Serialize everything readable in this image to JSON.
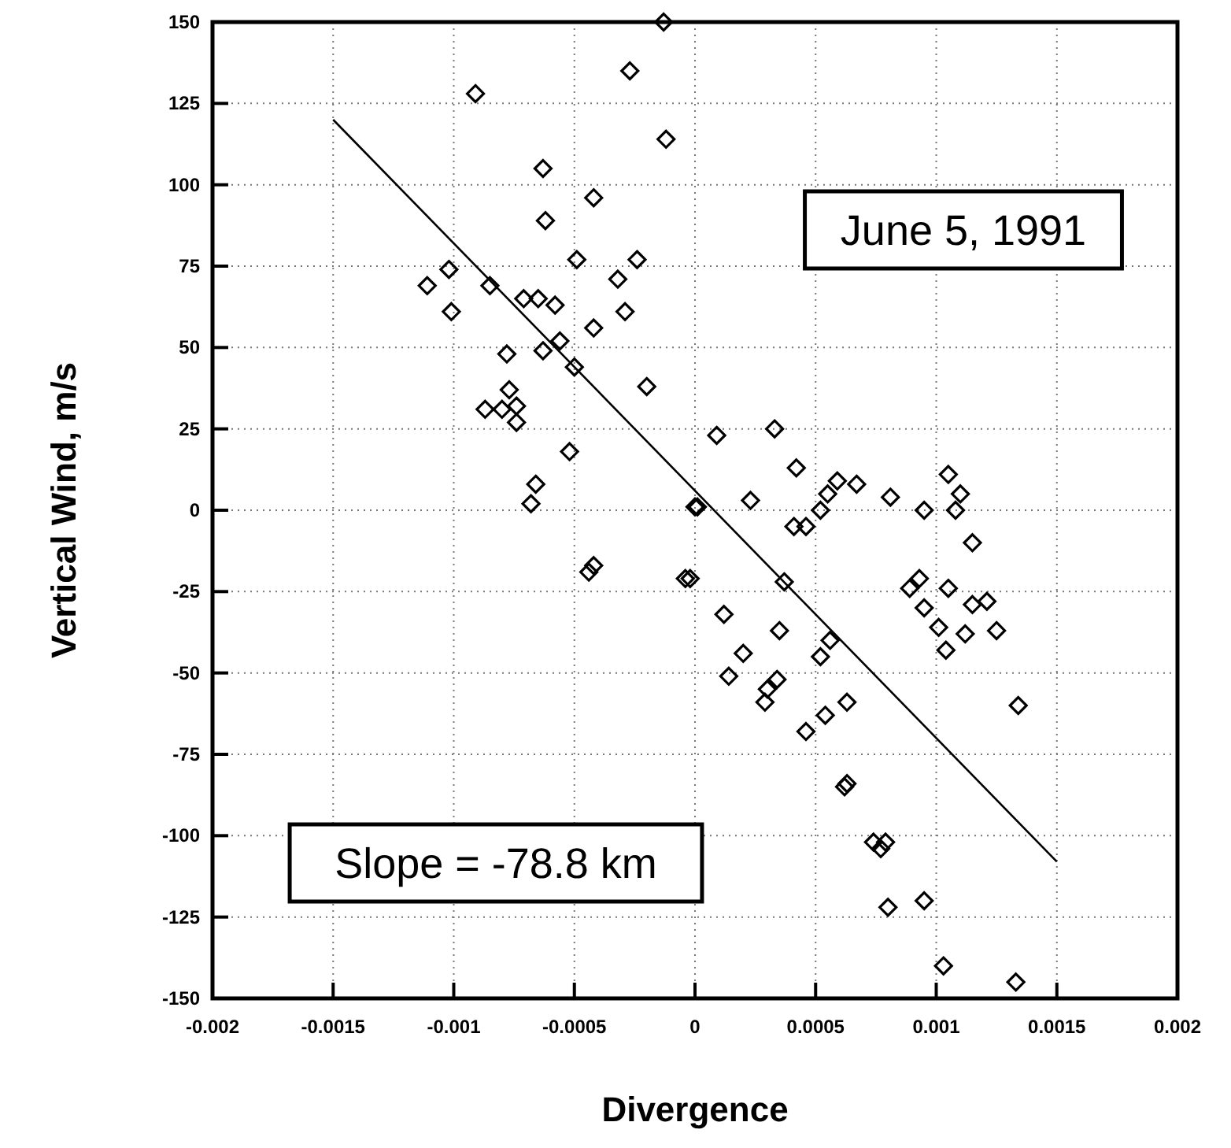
{
  "chart_data": {
    "type": "scatter",
    "xlabel": "Divergence",
    "ylabel": "Vertical Wind, m/s",
    "annotations": [
      "June 5, 1991",
      "Slope = -78.8 km"
    ],
    "xlim": [
      -0.002,
      0.002
    ],
    "xticks": [
      {
        "value": -0.002,
        "label": "-0.002"
      },
      {
        "value": -0.0015,
        "label": "-0.0015"
      },
      {
        "value": -0.001,
        "label": "-0.001"
      },
      {
        "value": -0.0005,
        "label": "-0.0005"
      },
      0,
      {
        "value": 0.0005,
        "label": "0.0005"
      },
      {
        "value": 0.001,
        "label": "0.001"
      },
      {
        "value": 0.0015,
        "label": "0.0015"
      },
      {
        "value": 0.002,
        "label": "0.002"
      }
    ],
    "ylim": [
      -150,
      150
    ],
    "yticks": [
      -150,
      -125,
      -100,
      -75,
      -50,
      -25,
      0,
      25,
      50,
      75,
      100,
      125,
      150
    ],
    "grid": true,
    "marker": "diamond",
    "series": [
      {
        "color": "#000000",
        "x": [
          -0.00013,
          -0.00027,
          -0.00091,
          -0.00012,
          -0.00063,
          -0.00042,
          -0.00062,
          -0.00049,
          -0.00024,
          -0.00102,
          -0.00111,
          -0.00032,
          -0.00085,
          -0.00071,
          -0.00065,
          -0.00058,
          -0.00101,
          -0.00029,
          -0.00056,
          -0.00042,
          -0.00078,
          -0.00063,
          -0.0005,
          -0.0002,
          -0.00077,
          -0.00087,
          -0.0008,
          -0.00074,
          -0.00074,
          -0.00052,
          -0.00066,
          -0.00068,
          0,
          1e-05,
          -0.00042,
          -0.00044,
          -2e-05,
          -4e-05,
          9e-05,
          0.00033,
          0.00042,
          0.00059,
          0.00055,
          0.00067,
          0.00081,
          0.00105,
          0.0011,
          0.00052,
          0.00095,
          0.00108,
          0.00023,
          0.00115,
          0.00041,
          0.00046,
          0.00037,
          0.00093,
          0.00089,
          0.00105,
          0.00095,
          0.00115,
          0.00121,
          0.00012,
          0.00035,
          0.00101,
          0.00112,
          0.00125,
          0.00104,
          0.00056,
          0.0002,
          0.00052,
          0.00014,
          0.00034,
          0.0003,
          0.00029,
          0.00063,
          0.00134,
          0.00054,
          0.00046,
          0.00063,
          0.00062,
          0.00074,
          0.00079,
          0.00077,
          0.0008,
          0.00095,
          0.00103,
          0.00133
        ],
        "values": [
          150,
          135,
          128,
          114,
          105,
          96,
          89,
          77,
          77,
          74,
          69,
          71,
          69,
          65,
          65,
          63,
          61,
          61,
          52,
          56,
          48,
          49,
          44,
          38,
          37,
          31,
          31,
          32,
          27,
          18,
          8,
          2,
          1,
          1,
          -17,
          -19,
          -21,
          -21,
          23,
          25,
          13,
          9,
          5,
          8,
          4,
          11,
          5,
          0,
          0,
          0,
          3,
          -10,
          -5,
          -5,
          -22,
          -21,
          -24,
          -24,
          -30,
          -29,
          -28,
          -32,
          -37,
          -36,
          -38,
          -37,
          -43,
          -40,
          -44,
          -45,
          -51,
          -52,
          -55,
          -59,
          -59,
          -60,
          -63,
          -68,
          -84,
          -85,
          -102,
          -102,
          -104,
          -122,
          -120,
          -140,
          -145
        ]
      },
      {
        "type": "line",
        "color": "#000000",
        "marker": "none",
        "line_style": "solid",
        "x": [
          -0.0015,
          0.0015
        ],
        "values": [
          120,
          -108
        ]
      }
    ]
  }
}
